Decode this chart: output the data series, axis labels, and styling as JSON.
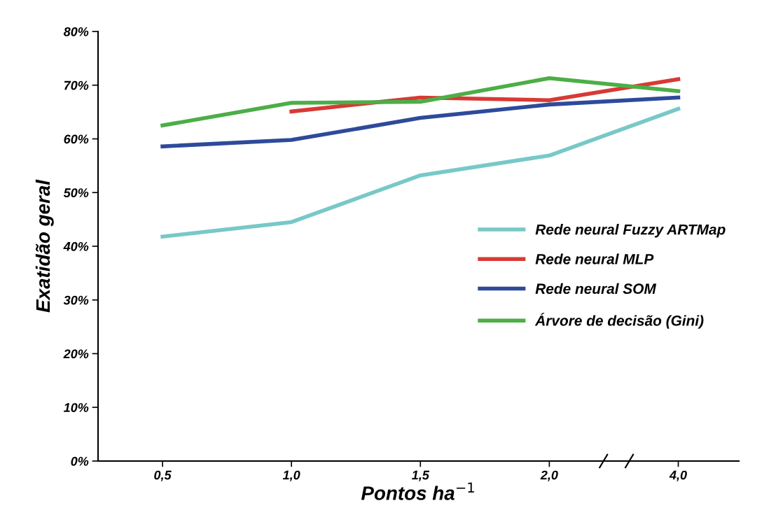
{
  "chart_data": {
    "type": "line",
    "xlabel": "Pontos ha$^{−1}$",
    "ylabel": "Exatidão geral",
    "categories": [
      "0,5",
      "1,0",
      "1,5",
      "2,0",
      "4,0"
    ],
    "series": [
      {
        "name": "Rede neural Fuzzy ARTMap",
        "color": "#78c8c8",
        "values": [
          41.8,
          44.5,
          53.2,
          56.9,
          65.6
        ]
      },
      {
        "name": "Rede neural MLP",
        "color": "#d83a35",
        "values": [
          null,
          65.1,
          67.7,
          67.2,
          71.1
        ]
      },
      {
        "name": "Rede neural SOM",
        "color": "#2e4a9a",
        "values": [
          58.6,
          59.8,
          63.9,
          66.4,
          67.7
        ]
      },
      {
        "name": "Árvore de decisão (Gini)",
        "color": "#4cae48",
        "values": [
          62.5,
          66.7,
          66.9,
          71.3,
          68.9
        ]
      }
    ],
    "ylim": [
      0,
      80
    ],
    "yticks": [
      {
        "value": 0,
        "label": "0%"
      },
      {
        "value": 10,
        "label": "10%"
      },
      {
        "value": 20,
        "label": "20%"
      },
      {
        "value": 30,
        "label": "30%"
      },
      {
        "value": 40,
        "label": "40%"
      },
      {
        "value": 50,
        "label": "50%"
      },
      {
        "value": 60,
        "label": "60%"
      },
      {
        "value": 70,
        "label": "70%"
      },
      {
        "value": 80,
        "label": "80%"
      }
    ],
    "grid": false,
    "legend": "center right",
    "marker": "none",
    "line_style": "solid"
  }
}
